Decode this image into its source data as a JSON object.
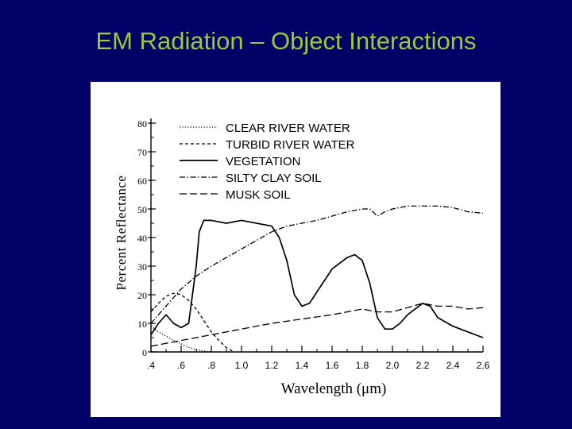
{
  "slide": {
    "title": "EM Radiation – Object Interactions"
  },
  "chart_data": {
    "type": "line",
    "title": "",
    "xlabel": "Wavelength (μm)",
    "ylabel": "Percent Reflectance",
    "xlim": [
      0.4,
      2.6
    ],
    "ylim": [
      0,
      80
    ],
    "x_ticks": [
      0.4,
      0.6,
      0.8,
      1.0,
      1.2,
      1.4,
      1.6,
      1.8,
      2.0,
      2.2,
      2.4,
      2.6
    ],
    "x_tick_labels": [
      ".4",
      ".6",
      ".8",
      "1.0",
      "1.2",
      "1.4",
      "1.6",
      "1.8",
      "2.0",
      "2.2",
      "2.4",
      "2.6"
    ],
    "y_ticks": [
      0,
      10,
      20,
      30,
      40,
      50,
      60,
      70,
      80
    ],
    "y_tick_labels": [
      "0",
      "10",
      "20",
      "30",
      "40",
      "50",
      "60",
      "70",
      "80"
    ],
    "grid": false,
    "legend_position": "top",
    "line_color": "#000000",
    "series": [
      {
        "name": "CLEAR RIVER WATER",
        "dash": "dotted",
        "x": [
          0.4,
          0.45,
          0.5,
          0.55,
          0.6,
          0.65,
          0.7,
          0.75,
          0.8
        ],
        "y": [
          9,
          7,
          5.5,
          4,
          2.8,
          1.6,
          0.8,
          0.3,
          0
        ]
      },
      {
        "name": "TURBID RIVER WATER",
        "dash": "short-dash",
        "x": [
          0.4,
          0.45,
          0.5,
          0.55,
          0.6,
          0.65,
          0.7,
          0.75,
          0.8,
          0.85,
          0.9,
          0.95
        ],
        "y": [
          14,
          17,
          19.5,
          20.5,
          20,
          18,
          15,
          11,
          7,
          4,
          1.5,
          0
        ]
      },
      {
        "name": "VEGETATION",
        "dash": "solid",
        "x": [
          0.4,
          0.45,
          0.5,
          0.55,
          0.6,
          0.65,
          0.7,
          0.72,
          0.75,
          0.8,
          0.9,
          1.0,
          1.1,
          1.2,
          1.25,
          1.3,
          1.35,
          1.4,
          1.45,
          1.5,
          1.6,
          1.7,
          1.75,
          1.8,
          1.85,
          1.9,
          1.95,
          2.0,
          2.05,
          2.1,
          2.2,
          2.25,
          2.3,
          2.4,
          2.5,
          2.6
        ],
        "y": [
          6,
          10,
          13,
          10,
          8.5,
          10,
          30,
          42,
          46,
          46,
          45,
          46,
          45,
          44,
          40,
          32,
          20,
          16,
          17,
          21,
          29,
          33,
          34,
          32,
          24,
          12,
          8,
          8,
          10,
          13,
          17,
          16,
          12,
          9,
          7,
          5
        ]
      },
      {
        "name": "SILTY CLAY SOIL",
        "dash": "dash-dot",
        "x": [
          0.4,
          0.5,
          0.6,
          0.7,
          0.8,
          0.9,
          1.0,
          1.1,
          1.2,
          1.3,
          1.4,
          1.5,
          1.6,
          1.7,
          1.8,
          1.85,
          1.9,
          1.95,
          2.0,
          2.1,
          2.2,
          2.3,
          2.4,
          2.5,
          2.6
        ],
        "y": [
          10,
          16,
          22,
          26.5,
          30,
          33,
          36,
          39,
          42,
          44,
          45,
          46,
          47.5,
          49,
          50,
          50,
          47.5,
          49,
          50,
          51,
          51,
          51,
          50.5,
          49,
          48.5
        ]
      },
      {
        "name": "MUSK SOIL",
        "dash": "long-dash",
        "x": [
          0.4,
          0.5,
          0.6,
          0.7,
          0.8,
          1.0,
          1.2,
          1.4,
          1.6,
          1.8,
          1.9,
          2.0,
          2.1,
          2.2,
          2.3,
          2.4,
          2.5,
          2.6
        ],
        "y": [
          2,
          3,
          4,
          5,
          6,
          8,
          10,
          11.5,
          13,
          15,
          14,
          14,
          15.5,
          17,
          16,
          16,
          15,
          15.5
        ]
      }
    ]
  }
}
